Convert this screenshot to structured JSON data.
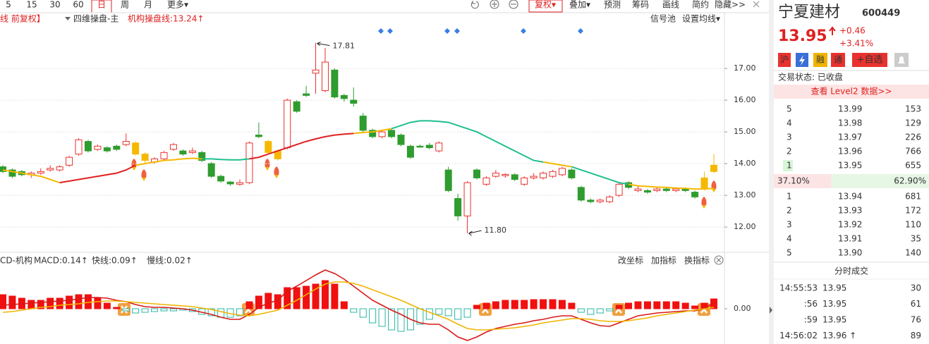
{
  "toolbar": {
    "periods": [
      "5",
      "15",
      "30",
      "60",
      "日",
      "周",
      "月",
      "更多▾"
    ],
    "tools": [
      "复权▾",
      "叠加▾",
      "预测",
      "筹码",
      "画线",
      "简约",
      "隐藏>>"
    ]
  },
  "main_header": {
    "adjust": "线 前复权】",
    "indicator": "四维操盘-主",
    "line_label": "机构操盘线:13.24↑",
    "signal": "信号池",
    "ma_setting": "设置均线▾"
  },
  "chart_data": [
    {
      "type": "candlestick",
      "open": [
        13.9,
        13.8,
        13.75,
        13.65,
        13.7,
        13.8,
        13.8,
        13.95,
        14.3,
        14.7,
        14.45,
        14.5,
        14.55,
        14.6,
        14.65,
        14.3,
        14.05,
        14.15,
        14.45,
        14.4,
        14.35,
        14.35,
        14.0,
        13.6,
        13.42,
        13.35,
        13.4,
        14.9,
        14.7,
        14.4,
        14.5,
        15.95,
        16.2,
        16.85,
        16.3,
        16.95,
        16.15,
        16.0,
        15.5,
        15.05,
        14.85,
        15.05,
        14.9,
        14.55,
        14.55,
        14.58,
        14.4,
        13.8,
        12.9,
        12.35,
        13.8,
        13.35,
        13.6,
        13.62,
        13.65,
        13.35,
        13.55,
        13.55,
        13.6,
        13.65,
        13.8,
        13.25,
        12.85,
        12.8,
        12.8,
        13.0,
        13.4,
        13.15,
        13.15,
        13.15,
        13.2,
        13.15,
        13.2,
        13.1,
        13.2,
        13.75
      ],
      "close": [
        13.75,
        13.6,
        13.65,
        13.7,
        13.75,
        13.85,
        13.9,
        14.2,
        14.75,
        14.4,
        14.55,
        14.4,
        14.45,
        14.7,
        14.3,
        14.1,
        14.15,
        14.35,
        14.6,
        14.3,
        14.4,
        14.1,
        13.6,
        13.45,
        13.36,
        13.4,
        14.65,
        14.85,
        14.35,
        14.15,
        16.0,
        15.65,
        16.15,
        16.95,
        17.2,
        16.1,
        16.05,
        15.9,
        15.05,
        14.85,
        15.0,
        14.85,
        14.6,
        14.2,
        14.52,
        14.5,
        14.65,
        13.15,
        12.35,
        13.4,
        13.55,
        13.55,
        13.7,
        13.66,
        13.5,
        13.55,
        13.6,
        13.7,
        13.75,
        13.85,
        13.55,
        12.85,
        12.8,
        12.85,
        12.95,
        13.35,
        13.25,
        13.2,
        13.1,
        13.2,
        13.15,
        13.2,
        13.15,
        12.95,
        13.55,
        13.95
      ],
      "high": [
        13.95,
        13.85,
        13.8,
        13.75,
        13.85,
        13.95,
        13.95,
        14.25,
        14.8,
        14.75,
        14.6,
        14.55,
        14.6,
        14.95,
        14.7,
        14.35,
        14.2,
        14.4,
        14.65,
        14.45,
        14.5,
        14.4,
        14.05,
        13.65,
        13.45,
        13.5,
        14.7,
        15.3,
        14.75,
        14.45,
        16.05,
        16.0,
        16.45,
        17.81,
        17.65,
        17.0,
        16.2,
        16.4,
        15.6,
        15.1,
        15.05,
        15.1,
        14.95,
        14.6,
        14.6,
        14.65,
        14.7,
        13.9,
        13.05,
        13.45,
        13.85,
        13.6,
        13.8,
        13.7,
        13.7,
        13.6,
        13.7,
        13.75,
        13.8,
        13.9,
        13.85,
        13.3,
        12.9,
        12.9,
        13.0,
        13.4,
        13.45,
        13.3,
        13.2,
        13.25,
        13.25,
        13.25,
        13.25,
        13.15,
        13.75,
        14.3
      ],
      "low": [
        13.7,
        13.55,
        13.6,
        13.55,
        13.65,
        13.75,
        13.75,
        13.9,
        14.25,
        14.35,
        14.4,
        14.35,
        14.4,
        14.55,
        14.25,
        14.0,
        14.0,
        14.1,
        14.4,
        14.25,
        14.3,
        14.05,
        13.55,
        13.4,
        13.3,
        13.3,
        13.35,
        14.8,
        14.3,
        14.1,
        14.45,
        15.6,
        16.1,
        16.2,
        16.25,
        16.05,
        15.95,
        15.8,
        15.0,
        14.8,
        14.8,
        14.8,
        14.55,
        14.15,
        14.5,
        14.45,
        14.35,
        13.1,
        12.2,
        11.8,
        13.5,
        13.3,
        13.55,
        13.55,
        13.45,
        13.3,
        13.5,
        13.5,
        13.55,
        13.6,
        13.5,
        12.8,
        12.75,
        12.75,
        12.75,
        12.95,
        13.2,
        13.1,
        13.05,
        13.1,
        13.1,
        13.1,
        13.1,
        12.9,
        13.15,
        13.7
      ],
      "colors": [
        "#2e9c2e",
        "#2e9c2e",
        "#2e9c2e",
        "#e8322e",
        "#e8322e",
        "#e8322e",
        "#e8322e",
        "#e8322e",
        "#e8322e",
        "#2e9c2e",
        "#e8322e",
        "#2e9c2e",
        "#2e9c2e",
        "#e8322e",
        "#f5b800",
        "#f5b800",
        "#e8322e",
        "#e8322e",
        "#e8322e",
        "#2e9c2e",
        "#e8322e",
        "#2e9c2e",
        "#2e9c2e",
        "#2e9c2e",
        "#2e9c2e",
        "#e8322e",
        "#e8322e",
        "#2e9c2e",
        "#f5b800",
        "#f5b800",
        "#e8322e",
        "#2e9c2e",
        "#2e9c2e",
        "#e8322e",
        "#e8322e",
        "#2e9c2e",
        "#2e9c2e",
        "#2e9c2e",
        "#2e9c2e",
        "#2e9c2e",
        "#e8322e",
        "#2e9c2e",
        "#2e9c2e",
        "#2e9c2e",
        "#2e9c2e",
        "#2e9c2e",
        "#e8322e",
        "#2e9c2e",
        "#2e9c2e",
        "#e8322e",
        "#2e9c2e",
        "#e8322e",
        "#e8322e",
        "#e8322e",
        "#2e9c2e",
        "#e8322e",
        "#e8322e",
        "#e8322e",
        "#e8322e",
        "#e8322e",
        "#2e9c2e",
        "#2e9c2e",
        "#2e9c2e",
        "#e8322e",
        "#e8322e",
        "#e8322e",
        "#2e9c2e",
        "#e8322e",
        "#2e9c2e",
        "#e8322e",
        "#2e9c2e",
        "#e8322e",
        "#2e9c2e",
        "#2e9c2e",
        "#f5b800",
        "#f5b800"
      ],
      "hollow_color": "#e8322e",
      "ma": {
        "values": [
          13.8,
          13.75,
          13.7,
          13.65,
          13.6,
          13.5,
          13.4,
          13.45,
          13.5,
          13.55,
          13.6,
          13.65,
          13.7,
          13.8,
          13.95,
          14.0,
          14.05,
          14.1,
          14.12,
          14.15,
          14.17,
          14.15,
          14.15,
          14.13,
          14.12,
          14.12,
          14.15,
          14.2,
          14.3,
          14.4,
          14.5,
          14.6,
          14.7,
          14.78,
          14.85,
          14.9,
          14.93,
          14.95,
          14.98,
          15.0,
          15.05,
          15.1,
          15.2,
          15.3,
          15.35,
          15.35,
          15.33,
          15.3,
          15.2,
          15.1,
          15.0,
          14.85,
          14.7,
          14.55,
          14.4,
          14.25,
          14.1,
          14.05,
          14.0,
          13.95,
          13.9,
          13.8,
          13.7,
          13.6,
          13.5,
          13.4,
          13.35,
          13.3,
          13.28,
          13.26,
          13.25,
          13.23,
          13.22,
          13.2,
          13.2,
          13.22
        ],
        "colors": [
          "#f5b800",
          "#f5b800",
          "#f5b800",
          "#f5b800",
          "#f5b800",
          "#f5b800",
          "#e02020",
          "#e02020",
          "#e02020",
          "#e02020",
          "#e02020",
          "#e02020",
          "#e02020",
          "#e02020",
          "#f5b800",
          "#f5b800",
          "#f5b800",
          "#f5b800",
          "#f5b800",
          "#f5b800",
          "#f5b800",
          "#1fbf8f",
          "#1fbf8f",
          "#1fbf8f",
          "#1fbf8f",
          "#1fbf8f",
          "#e02020",
          "#e02020",
          "#e02020",
          "#e02020",
          "#e02020",
          "#e02020",
          "#e02020",
          "#e02020",
          "#e02020",
          "#e02020",
          "#e02020",
          "#f5b800",
          "#f5b800",
          "#f5b800",
          "#f5b800",
          "#1fbf8f",
          "#1fbf8f",
          "#1fbf8f",
          "#1fbf8f",
          "#1fbf8f",
          "#1fbf8f",
          "#1fbf8f",
          "#1fbf8f",
          "#1fbf8f",
          "#1fbf8f",
          "#1fbf8f",
          "#1fbf8f",
          "#1fbf8f",
          "#1fbf8f",
          "#1fbf8f",
          "#1fbf8f",
          "#f5b800",
          "#f5b800",
          "#f5b800",
          "#1fbf8f",
          "#1fbf8f",
          "#1fbf8f",
          "#1fbf8f",
          "#1fbf8f",
          "#1fbf8f",
          "#f5b800",
          "#f5b800",
          "#f5b800",
          "#f5b800",
          "#f5b800",
          "#f5b800",
          "#f5b800",
          "#f5b800",
          "#f5b800",
          "#f5b800"
        ]
      },
      "ylim": [
        11.38,
        18.38
      ],
      "yticks": [
        {
          "value": 17,
          "label": "17.00"
        },
        {
          "value": 16,
          "label": "16.00"
        },
        {
          "value": 15,
          "label": "15.00"
        },
        {
          "value": 14,
          "label": "14.00"
        },
        {
          "value": 13,
          "label": "13.00"
        },
        {
          "value": 12,
          "label": "12.00"
        }
      ],
      "annotations": {
        "high": "17.81",
        "low": "11.80"
      }
    },
    {
      "type": "macd",
      "title": "CD-机构",
      "label": "MACD:0.14↑",
      "histogram": [
        0.2,
        0.18,
        0.15,
        0.12,
        0.12,
        0.15,
        0.15,
        0.18,
        0.2,
        0.2,
        0.15,
        0.08,
        0.02,
        -0.03,
        -0.06,
        -0.05,
        -0.04,
        -0.03,
        -0.03,
        -0.02,
        -0.04,
        -0.08,
        -0.1,
        -0.12,
        -0.12,
        -0.1,
        0.1,
        0.18,
        0.22,
        0.2,
        0.3,
        0.3,
        0.32,
        0.35,
        0.4,
        0.35,
        0.1,
        -0.05,
        -0.12,
        -0.2,
        -0.25,
        -0.3,
        -0.32,
        -0.3,
        -0.22,
        -0.15,
        -0.08,
        -0.1,
        -0.15,
        -0.12,
        0.05,
        0.08,
        0.1,
        0.12,
        0.12,
        0.12,
        0.13,
        0.13,
        0.13,
        0.12,
        0.08,
        -0.05,
        -0.08,
        -0.06,
        -0.03,
        0.05,
        0.08,
        0.1,
        0.1,
        0.1,
        0.1,
        0.1,
        0.08,
        0.04,
        0.08,
        0.14
      ],
      "up_color": "#f01010",
      "down_color": "#2ab5a5",
      "series": [
        {
          "name": "快线:0.09↑",
          "color": "#d81818",
          "values": [
            0.05,
            0.06,
            0.07,
            0.08,
            0.09,
            0.1,
            0.11,
            0.12,
            0.14,
            0.16,
            0.16,
            0.15,
            0.12,
            0.1,
            0.06,
            0.03,
            0.02,
            0.02,
            0.01,
            0,
            -0.02,
            -0.05,
            -0.08,
            -0.12,
            -0.15,
            -0.15,
            -0.08,
            0.02,
            0.08,
            0.12,
            0.25,
            0.32,
            0.4,
            0.48,
            0.55,
            0.5,
            0.42,
            0.32,
            0.22,
            0.12,
            0.05,
            -0.02,
            -0.08,
            -0.15,
            -0.2,
            -0.22,
            -0.22,
            -0.3,
            -0.4,
            -0.45,
            -0.4,
            -0.33,
            -0.28,
            -0.25,
            -0.22,
            -0.2,
            -0.17,
            -0.15,
            -0.12,
            -0.1,
            -0.1,
            -0.15,
            -0.2,
            -0.24,
            -0.25,
            -0.2,
            -0.15,
            -0.1,
            -0.08,
            -0.06,
            -0.05,
            -0.04,
            -0.03,
            -0.03,
            0.0,
            0.09
          ]
        },
        {
          "name": "慢线:0.02↑",
          "color": "#f0b400",
          "values": [
            -0.05,
            -0.04,
            -0.02,
            0,
            0.02,
            0.03,
            0.05,
            0.06,
            0.07,
            0.09,
            0.1,
            0.11,
            0.11,
            0.1,
            0.09,
            0.08,
            0.07,
            0.06,
            0.05,
            0.04,
            0.03,
            0.01,
            -0.01,
            -0.04,
            -0.07,
            -0.09,
            -0.1,
            -0.08,
            -0.05,
            -0.02,
            0.05,
            0.12,
            0.2,
            0.28,
            0.35,
            0.38,
            0.38,
            0.36,
            0.32,
            0.27,
            0.22,
            0.17,
            0.12,
            0.06,
            0,
            -0.05,
            -0.1,
            -0.15,
            -0.22,
            -0.28,
            -0.3,
            -0.3,
            -0.29,
            -0.28,
            -0.27,
            -0.25,
            -0.23,
            -0.2,
            -0.18,
            -0.16,
            -0.14,
            -0.14,
            -0.15,
            -0.17,
            -0.18,
            -0.18,
            -0.17,
            -0.15,
            -0.13,
            -0.1,
            -0.08,
            -0.06,
            -0.04,
            -0.02,
            0.0,
            0.02
          ]
        }
      ],
      "ylim": [
        -0.5,
        0.58
      ],
      "yticks": [
        {
          "value": 0,
          "label": "0.00"
        }
      ],
      "tools": [
        "改坐标",
        "加指标",
        "换指标"
      ]
    }
  ],
  "quote": {
    "name": "宁夏建材",
    "code": "600449",
    "price": "13.95",
    "change": "+0.46",
    "change_pct": "+3.41%",
    "badges": [
      "沪",
      "融",
      "通",
      "+自选"
    ],
    "status": "交易状态: 已收盘",
    "level2": "查看 Level2 数据>>",
    "asks": [
      [
        "5",
        "13.99",
        "153"
      ],
      [
        "4",
        "13.98",
        "129"
      ],
      [
        "3",
        "13.97",
        "226"
      ],
      [
        "2",
        "13.96",
        "766"
      ],
      [
        "1",
        "13.95",
        "655"
      ]
    ],
    "ratio": {
      "values": [
        37.1,
        62.9
      ],
      "value_labels": [
        "37.10%",
        "62.90%"
      ]
    },
    "bids": [
      [
        "1",
        "13.94",
        "681"
      ],
      [
        "2",
        "13.93",
        "172"
      ],
      [
        "3",
        "13.92",
        "110"
      ],
      [
        "4",
        "13.91",
        "35"
      ],
      [
        "5",
        "13.90",
        "140"
      ]
    ],
    "trades_title": "分时成交",
    "trades": [
      [
        "14:55:53",
        "13.95",
        "30"
      ],
      [
        ":56",
        "13.95",
        "61"
      ],
      [
        ":59",
        "13.95",
        "76"
      ],
      [
        "14:56:02",
        "13.96 ↑",
        "89"
      ]
    ]
  }
}
